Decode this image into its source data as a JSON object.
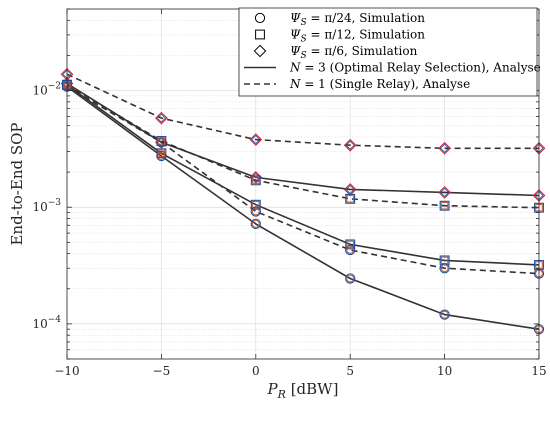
{
  "chart_data": {
    "type": "line",
    "title": "",
    "xlabel_main": "P",
    "xlabel_sub": "R",
    "xlabel_unit": " [dBW]",
    "ylabel": "End-to-End SOP",
    "x": [
      -10,
      -5,
      0,
      5,
      10,
      15
    ],
    "xlim": [
      -10,
      15
    ],
    "ylim": [
      5e-05,
      0.05
    ],
    "yscale": "log",
    "grid": true,
    "legend_position": "top-right",
    "xticks": [
      "−10",
      "−5",
      "0",
      "5",
      "10",
      "15"
    ],
    "yticks": [
      {
        "base": "10",
        "exp": "−2",
        "value": 0.01
      },
      {
        "base": "10",
        "exp": "−3",
        "value": 0.001
      },
      {
        "base": "10",
        "exp": "−4",
        "value": 0.0001
      }
    ],
    "legend": [
      {
        "marker": "circle",
        "text": "Ψ",
        "sub": "S",
        "rest": " = π/24, Simulation"
      },
      {
        "marker": "square",
        "text": "Ψ",
        "sub": "S",
        "rest": " = π/12, Simulation"
      },
      {
        "marker": "diamond",
        "text": "Ψ",
        "sub": "S",
        "rest": " = π/6, Simulation"
      },
      {
        "marker": "solid",
        "text": "N",
        "sub": "",
        "rest": " = 3 (Optimal Relay Selection), Analyse"
      },
      {
        "marker": "dashed",
        "text": "N",
        "sub": "",
        "rest": " = 1 (Single Relay), Analyse"
      }
    ],
    "series": [
      {
        "psi": "π/24",
        "n": 3,
        "marker": "circle",
        "style": "solid",
        "values": [
          0.0108,
          0.00275,
          0.00072,
          0.000245,
          0.00012,
          9e-05
        ]
      },
      {
        "psi": "π/12",
        "n": 3,
        "marker": "square",
        "style": "solid",
        "values": [
          0.0112,
          0.0029,
          0.00105,
          0.00048,
          0.00035,
          0.00032
        ]
      },
      {
        "psi": "π/6",
        "n": 3,
        "marker": "diamond",
        "style": "solid",
        "values": [
          0.0115,
          0.0036,
          0.0018,
          0.00142,
          0.00134,
          0.00126
        ]
      },
      {
        "psi": "π/24",
        "n": 1,
        "marker": "circle",
        "style": "dashed",
        "values": [
          0.0108,
          0.0036,
          0.00092,
          0.00043,
          0.0003,
          0.00027
        ]
      },
      {
        "psi": "π/12",
        "n": 1,
        "marker": "square",
        "style": "dashed",
        "values": [
          0.0112,
          0.0037,
          0.0017,
          0.00118,
          0.00103,
          0.00099
        ]
      },
      {
        "psi": "π/6",
        "n": 1,
        "marker": "diamond",
        "style": "dashed",
        "values": [
          0.0138,
          0.0058,
          0.0038,
          0.0034,
          0.0032,
          0.0032
        ]
      }
    ],
    "colors": {
      "line": "#333333",
      "circle": "#c8522a",
      "square": "#c8522a",
      "diamond": "#d62728",
      "circle_inner": "#1f4fa0",
      "square_inner": "#1f4fa0",
      "diamond_inner": "#1f4fa0",
      "grid": "#d9d9d9",
      "axes": "#262626"
    }
  }
}
